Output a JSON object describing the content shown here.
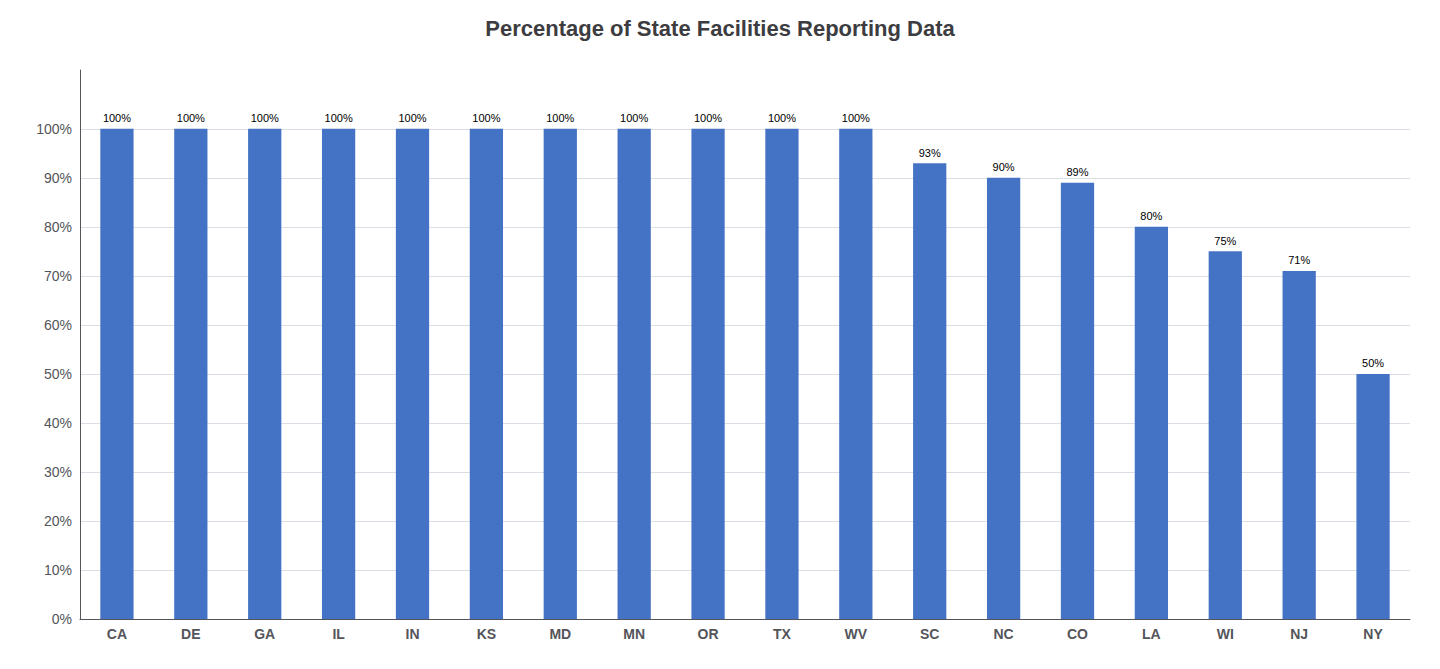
{
  "chart_data": {
    "type": "bar",
    "title": "Percentage of State Facilities Reporting Data",
    "categories": [
      "CA",
      "DE",
      "GA",
      "IL",
      "IN",
      "KS",
      "MD",
      "MN",
      "OR",
      "TX",
      "WV",
      "SC",
      "NC",
      "CO",
      "LA",
      "WI",
      "NJ",
      "NY"
    ],
    "values": [
      100,
      100,
      100,
      100,
      100,
      100,
      100,
      100,
      100,
      100,
      100,
      93,
      90,
      89,
      80,
      75,
      71,
      50
    ],
    "value_labels": [
      "100%",
      "100%",
      "100%",
      "100%",
      "100%",
      "100%",
      "100%",
      "100%",
      "100%",
      "100%",
      "100%",
      "93%",
      "90%",
      "89%",
      "80%",
      "75%",
      "71%",
      "50%"
    ],
    "data_labels": true,
    "color": "#4472C4",
    "ylim": [
      0,
      112
    ],
    "yticks": [
      {
        "value": 0,
        "label": "0%"
      },
      {
        "value": 10,
        "label": "10%"
      },
      {
        "value": 20,
        "label": "20%"
      },
      {
        "value": 30,
        "label": "30%"
      },
      {
        "value": 40,
        "label": "40%"
      },
      {
        "value": 50,
        "label": "50%"
      },
      {
        "value": 60,
        "label": "60%"
      },
      {
        "value": 70,
        "label": "70%"
      },
      {
        "value": 80,
        "label": "80%"
      },
      {
        "value": 90,
        "label": "90%"
      },
      {
        "value": 100,
        "label": "100%"
      }
    ],
    "grid": true
  }
}
